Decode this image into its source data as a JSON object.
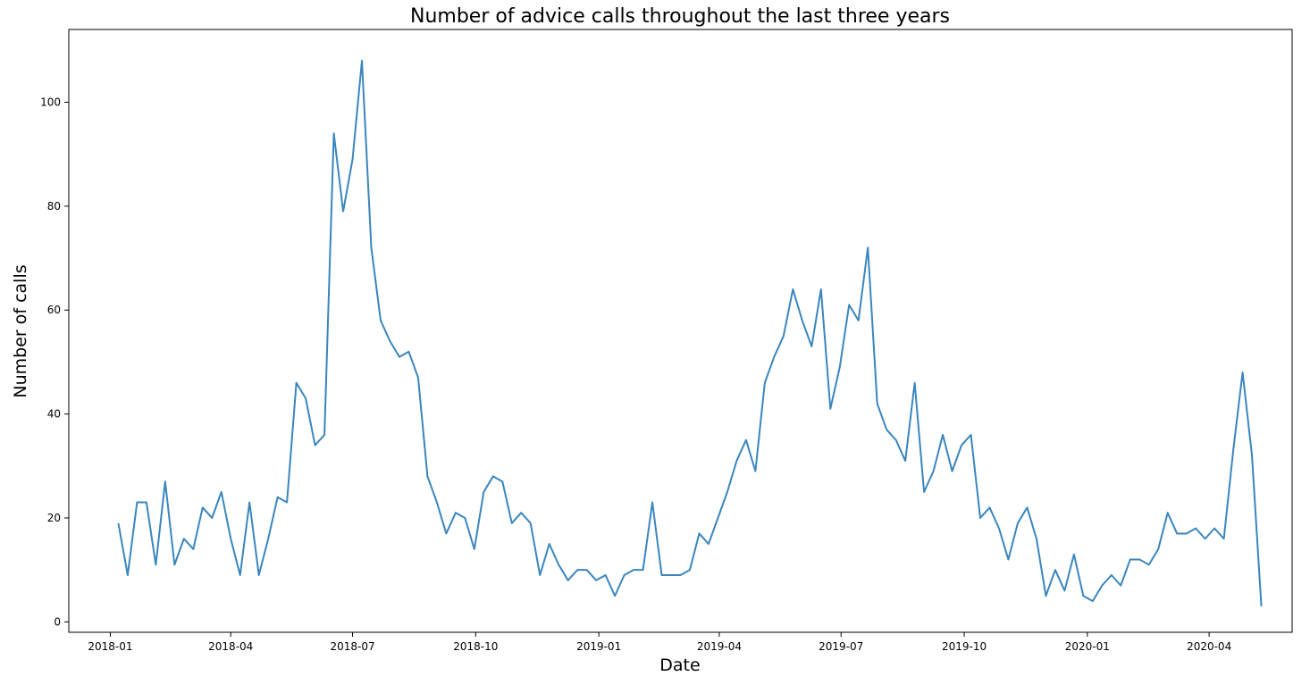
{
  "chart_data": {
    "type": "line",
    "title": "Number of advice calls throughout the last three years",
    "xlabel": "Date",
    "ylabel": "Number of calls",
    "x_tick_labels": [
      "2018-01",
      "2018-04",
      "2018-07",
      "2018-10",
      "2019-01",
      "2019-04",
      "2019-07",
      "2019-10",
      "2020-01",
      "2020-04"
    ],
    "x_ticks": [
      "2018-01-01",
      "2018-04-01",
      "2018-07-01",
      "2018-10-01",
      "2019-01-01",
      "2019-04-01",
      "2019-07-01",
      "2019-10-01",
      "2020-01-01",
      "2020-04-01"
    ],
    "xlim": [
      "2017-12-01",
      "2020-06-02"
    ],
    "ylim": [
      -2,
      114
    ],
    "y_ticks": [
      0,
      20,
      40,
      60,
      80,
      100
    ],
    "grid": false,
    "line_color": "#3a86be",
    "series": [
      {
        "x": [
          "2018-01-07",
          "2018-01-14",
          "2018-01-21",
          "2018-01-28",
          "2018-02-04",
          "2018-02-11",
          "2018-02-18",
          "2018-02-25",
          "2018-03-04",
          "2018-03-11",
          "2018-03-18",
          "2018-03-25",
          "2018-04-01",
          "2018-04-08",
          "2018-04-15",
          "2018-04-22",
          "2018-04-29",
          "2018-05-06",
          "2018-05-13",
          "2018-05-20",
          "2018-05-27",
          "2018-06-03",
          "2018-06-10",
          "2018-06-17",
          "2018-06-24",
          "2018-07-01",
          "2018-07-08",
          "2018-07-15",
          "2018-07-22",
          "2018-07-29",
          "2018-08-05",
          "2018-08-12",
          "2018-08-19",
          "2018-08-26",
          "2018-09-02",
          "2018-09-09",
          "2018-09-16",
          "2018-09-23",
          "2018-09-30",
          "2018-10-07",
          "2018-10-14",
          "2018-10-21",
          "2018-10-28",
          "2018-11-04",
          "2018-11-11",
          "2018-11-18",
          "2018-11-25",
          "2018-12-02",
          "2018-12-09",
          "2018-12-16",
          "2018-12-23",
          "2018-12-30",
          "2019-01-06",
          "2019-01-13",
          "2019-01-20",
          "2019-01-27",
          "2019-02-03",
          "2019-02-10",
          "2019-02-17",
          "2019-02-24",
          "2019-03-03",
          "2019-03-10",
          "2019-03-17",
          "2019-03-24",
          "2019-03-31",
          "2019-04-07",
          "2019-04-14",
          "2019-04-21",
          "2019-04-28",
          "2019-05-05",
          "2019-05-12",
          "2019-05-19",
          "2019-05-26",
          "2019-06-02",
          "2019-06-09",
          "2019-06-16",
          "2019-06-23",
          "2019-06-30",
          "2019-07-07",
          "2019-07-14",
          "2019-07-21",
          "2019-07-28",
          "2019-08-04",
          "2019-08-11",
          "2019-08-18",
          "2019-08-25",
          "2019-09-01",
          "2019-09-08",
          "2019-09-15",
          "2019-09-22",
          "2019-09-29",
          "2019-10-06",
          "2019-10-13",
          "2019-10-20",
          "2019-10-27",
          "2019-11-03",
          "2019-11-10",
          "2019-11-17",
          "2019-11-24",
          "2019-12-01",
          "2019-12-08",
          "2019-12-15",
          "2019-12-22",
          "2019-12-29",
          "2020-01-05",
          "2020-01-12",
          "2020-01-19",
          "2020-01-26",
          "2020-02-02",
          "2020-02-09",
          "2020-02-16",
          "2020-02-23",
          "2020-03-01",
          "2020-03-08",
          "2020-03-15",
          "2020-03-22",
          "2020-03-29",
          "2020-04-05",
          "2020-04-12",
          "2020-04-19",
          "2020-04-26",
          "2020-05-03",
          "2020-05-10"
        ],
        "y": [
          19,
          9,
          23,
          23,
          11,
          27,
          11,
          16,
          14,
          22,
          20,
          25,
          16,
          9,
          23,
          9,
          16,
          24,
          23,
          46,
          43,
          34,
          36,
          94,
          79,
          89,
          108,
          72,
          58,
          54,
          51,
          52,
          47,
          28,
          23,
          17,
          21,
          20,
          14,
          25,
          28,
          27,
          19,
          21,
          19,
          9,
          15,
          11,
          8,
          10,
          10,
          8,
          9,
          5,
          9,
          10,
          10,
          23,
          9,
          9,
          9,
          10,
          17,
          15,
          20,
          25,
          31,
          35,
          29,
          46,
          51,
          55,
          64,
          58,
          53,
          64,
          41,
          49,
          61,
          58,
          72,
          42,
          37,
          35,
          31,
          46,
          25,
          29,
          36,
          29,
          34,
          36,
          20,
          22,
          18,
          12,
          19,
          22,
          16,
          5,
          10,
          6,
          13,
          5,
          4,
          7,
          9,
          7,
          12,
          12,
          11,
          14,
          21,
          17,
          17,
          18,
          16,
          18,
          16,
          33,
          48,
          32,
          3
        ]
      }
    ]
  }
}
